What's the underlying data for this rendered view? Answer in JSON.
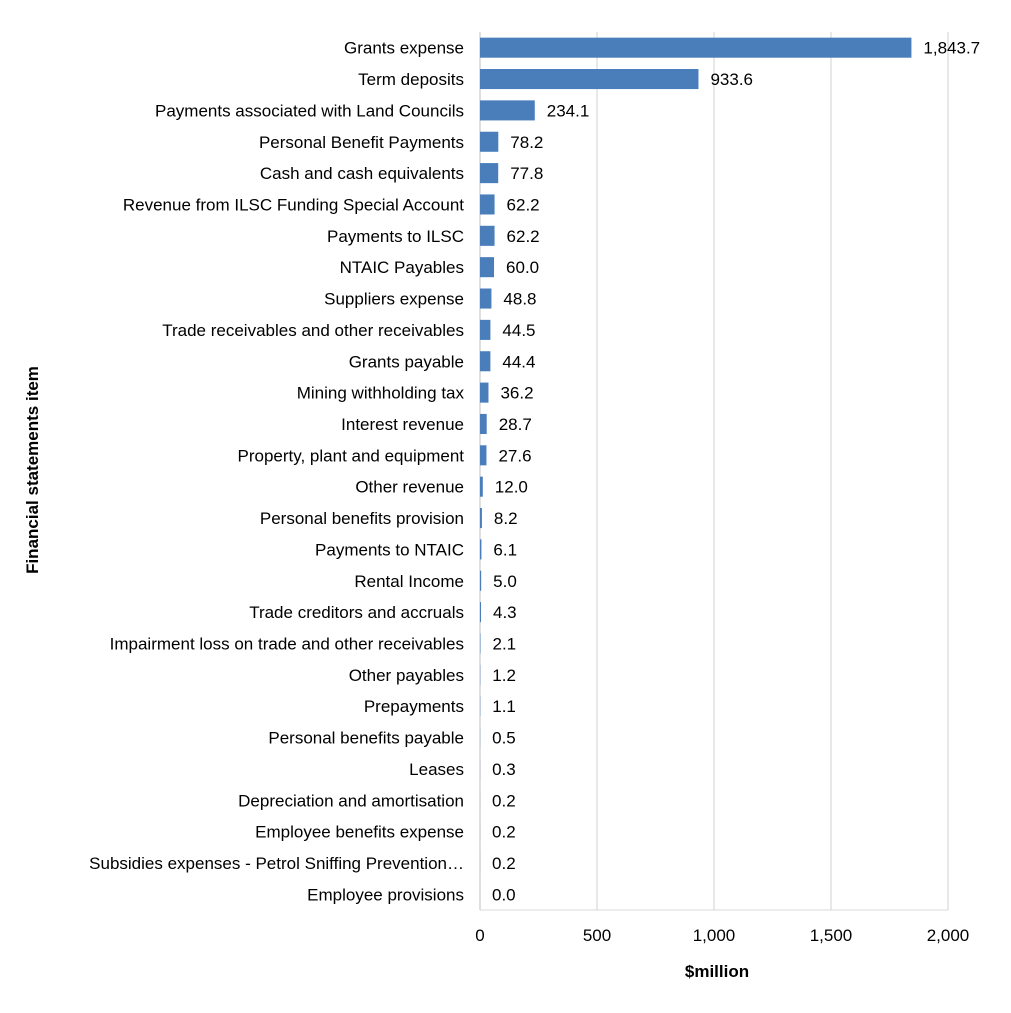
{
  "chart_data": {
    "type": "bar",
    "orientation": "horizontal",
    "ylabel": "Financial statements item",
    "xlabel": "$million",
    "xlim": [
      0,
      2000
    ],
    "xticks": [
      0,
      500,
      1000,
      1500,
      2000
    ],
    "xtick_labels": [
      "0",
      "500",
      "1,000",
      "1,500",
      "2,000"
    ],
    "grid": "vertical",
    "bar_color": "#4a7ebb",
    "categories": [
      "Grants expense",
      "Term deposits",
      "Payments associated with Land Councils",
      "Personal Benefit Payments",
      "Cash and cash equivalents",
      "Revenue from ILSC Funding Special Account",
      "Payments to ILSC",
      "NTAIC Payables",
      "Suppliers expense",
      "Trade receivables and other receivables",
      "Grants payable",
      "Mining withholding tax",
      "Interest revenue",
      "Property, plant and equipment",
      "Other revenue",
      "Personal benefits provision",
      "Payments to NTAIC",
      "Rental Income",
      "Trade creditors and accruals",
      "Impairment loss on trade and other receivables",
      "Other payables",
      "Prepayments",
      "Personal benefits payable",
      "Leases",
      "Depreciation and amortisation",
      "Employee benefits expense",
      "Subsidies expenses - Petrol Sniffing Prevention…",
      "Employee provisions"
    ],
    "values": [
      1843.7,
      933.6,
      234.1,
      78.2,
      77.8,
      62.2,
      62.2,
      60.0,
      48.8,
      44.5,
      44.4,
      36.2,
      28.7,
      27.6,
      12.0,
      8.2,
      6.1,
      5.0,
      4.3,
      2.1,
      1.2,
      1.1,
      0.5,
      0.3,
      0.2,
      0.2,
      0.2,
      0.0
    ],
    "value_labels": [
      "1,843.7",
      "933.6",
      "234.1",
      "78.2",
      "77.8",
      "62.2",
      "62.2",
      "60.0",
      "48.8",
      "44.5",
      "44.4",
      "36.2",
      "28.7",
      "27.6",
      "12.0",
      "8.2",
      "6.1",
      "5.0",
      "4.3",
      "2.1",
      "1.2",
      "1.1",
      "0.5",
      "0.3",
      "0.2",
      "0.2",
      "0.2",
      "0.0"
    ]
  }
}
